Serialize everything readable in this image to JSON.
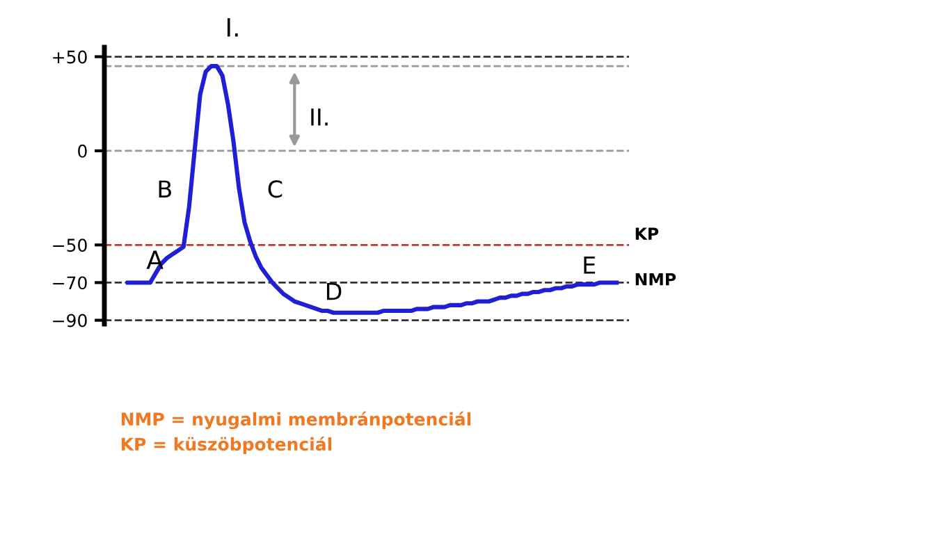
{
  "chart_data": {
    "type": "line",
    "categories": [
      null,
      null,
      null,
      null,
      null,
      null,
      null,
      null,
      null,
      null,
      null,
      null,
      null,
      null,
      null,
      null,
      null,
      null,
      null,
      null,
      null,
      null,
      null,
      null,
      null,
      null,
      null,
      null,
      null,
      null,
      null,
      null,
      null,
      null,
      null,
      null,
      null,
      null,
      null,
      null,
      null,
      null,
      null,
      null,
      null,
      null,
      null,
      null,
      null,
      null,
      null,
      null,
      null,
      null,
      null,
      null,
      null,
      null,
      null,
      null,
      null,
      null,
      null,
      null,
      null,
      null,
      null,
      null,
      null,
      null,
      null,
      null,
      null,
      null,
      null,
      null,
      null,
      null,
      null,
      null,
      null,
      null,
      null,
      null,
      null,
      null,
      null,
      null,
      null
    ],
    "series": [
      {
        "color": "#1f1fd6",
        "values": [
          -70,
          -70,
          -70,
          -70,
          -70,
          -65,
          -60,
          -57,
          -55,
          -53,
          -51,
          -30,
          0,
          30,
          42,
          45,
          45,
          40,
          25,
          5,
          -20,
          -38,
          -48,
          -56,
          -62,
          -66,
          -70,
          -73,
          -76,
          -78,
          -80,
          -81,
          -82,
          -83,
          -84,
          -85,
          -85,
          -86,
          -86,
          -86,
          -86,
          -86,
          -86,
          -86,
          -86,
          -86,
          -85,
          -85,
          -85,
          -85,
          -85,
          -85,
          -84,
          -84,
          -84,
          -83,
          -83,
          -83,
          -82,
          -82,
          -82,
          -81,
          -81,
          -80,
          -80,
          -80,
          -79,
          -78,
          -78,
          -77,
          -77,
          -76,
          -76,
          -75,
          -75,
          -74,
          -74,
          -73,
          -73,
          -72,
          -72,
          -71,
          -71,
          -71,
          -71,
          -70,
          -70,
          -70,
          -70
        ]
      }
    ],
    "ylim": [
      -92,
      55
    ],
    "yticks": [
      {
        "value": 50,
        "label": "+50"
      },
      0,
      {
        "value": -50,
        "label": "−50"
      },
      {
        "value": -70,
        "label": "−70"
      },
      {
        "value": -90,
        "label": "−90"
      }
    ],
    "tick_labels": "y",
    "grid": false,
    "legend": false,
    "marker": "none",
    "line_style": "solid",
    "ref_lines": [
      {
        "axis": "y",
        "value": 50,
        "color": "#333333",
        "line_style": "dashed"
      },
      {
        "axis": "y",
        "value": 45,
        "color": "#999999",
        "line_style": "dashed"
      },
      {
        "axis": "y",
        "value": 0,
        "color": "#999999",
        "line_style": "dashed"
      },
      {
        "axis": "y",
        "value": -50,
        "label": "KP",
        "color": "#c0392b",
        "line_style": "dashed"
      },
      {
        "axis": "y",
        "value": -70,
        "label": "NMP",
        "color": "#333333",
        "line_style": "dashed"
      },
      {
        "axis": "y",
        "value": -90,
        "color": "#333333",
        "line_style": "dashed"
      }
    ],
    "annotations": [
      "I.",
      "II.",
      "A",
      "B",
      "C",
      "D",
      "E",
      "NMP = nyugalmi membránpotenciál",
      "KP = küszöbpotenciál"
    ]
  }
}
